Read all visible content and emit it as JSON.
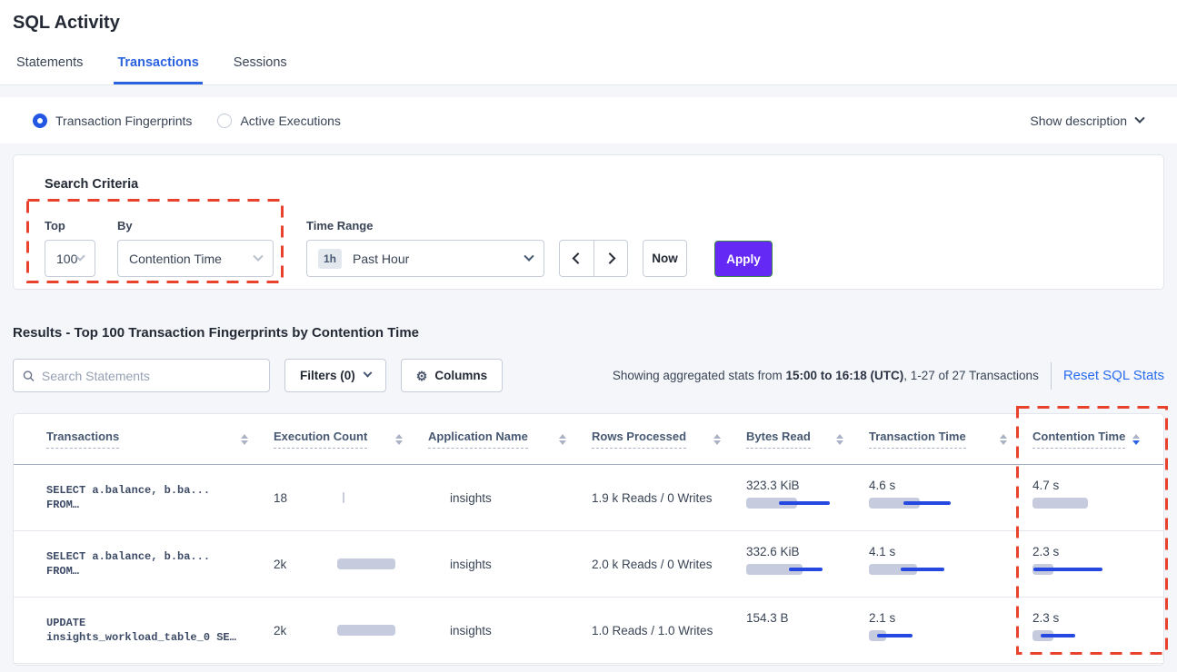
{
  "page": {
    "title": "SQL Activity"
  },
  "tabs": [
    {
      "label": "Statements",
      "active": false
    },
    {
      "label": "Transactions",
      "active": true
    },
    {
      "label": "Sessions",
      "active": false
    }
  ],
  "view_toggle": {
    "options": [
      {
        "label": "Transaction Fingerprints",
        "selected": true
      },
      {
        "label": "Active Executions",
        "selected": false
      }
    ],
    "show_description_label": "Show description"
  },
  "search_criteria": {
    "heading": "Search Criteria",
    "top": {
      "label": "Top",
      "value": "100"
    },
    "by": {
      "label": "By",
      "value": "Contention Time"
    },
    "time_range": {
      "label": "Time Range",
      "badge": "1h",
      "value": "Past Hour"
    },
    "now_label": "Now",
    "apply_label": "Apply"
  },
  "results": {
    "heading": "Results - Top 100 Transaction Fingerprints by Contention Time",
    "search_placeholder": "Search Statements",
    "filters_label": "Filters (0)",
    "columns_label": "Columns",
    "stats_prefix": "Showing aggregated stats from ",
    "stats_bold": "15:00 to 16:18 (UTC)",
    "stats_suffix": ", 1-27 of 27 Transactions",
    "reset_label": "Reset SQL Stats"
  },
  "table": {
    "columns": [
      {
        "label": "Transactions",
        "sort": "none"
      },
      {
        "label": "Execution Count",
        "sort": "none"
      },
      {
        "label": "Application Name",
        "sort": "none"
      },
      {
        "label": "Rows Processed",
        "sort": "none"
      },
      {
        "label": "Bytes Read",
        "sort": "none"
      },
      {
        "label": "Transaction Time",
        "sort": "none"
      },
      {
        "label": "Contention Time",
        "sort": "desc"
      }
    ],
    "rows": [
      {
        "sql_line1": "SELECT a.balance, b.ba...",
        "sql_line2": "FROM…",
        "execution_count": "18",
        "execution_bar": {
          "bar": 2,
          "x": 6
        },
        "application_name": "insights",
        "rows_processed": "1.9 k Reads / 0 Writes",
        "bytes_read": "323.3 KiB",
        "bytes_bar": {
          "bar": 56,
          "line": [
            36,
            92
          ]
        },
        "transaction_time": "4.6 s",
        "transaction_bar": {
          "bar": 56,
          "line": [
            38,
            90
          ]
        },
        "contention_time": "4.7 s",
        "contention_bar": {
          "bar": 61
        }
      },
      {
        "sql_line1": "SELECT a.balance, b.ba...",
        "sql_line2": "FROM…",
        "execution_count": "2k",
        "execution_bar": {
          "bar": 64
        },
        "application_name": "insights",
        "rows_processed": "2.0 k Reads / 0 Writes",
        "bytes_read": "332.6 KiB",
        "bytes_bar": {
          "bar": 62,
          "line": [
            47,
            84
          ]
        },
        "transaction_time": "4.1 s",
        "transaction_bar": {
          "bar": 53,
          "line": [
            35,
            83
          ]
        },
        "contention_time": "2.3 s",
        "contention_bar": {
          "bar": 23,
          "line": [
            1,
            77
          ]
        }
      },
      {
        "sql_line1": "UPDATE",
        "sql_line2": "insights_workload_table_0 SE…",
        "execution_count": "2k",
        "execution_bar": {
          "bar": 64
        },
        "application_name": "insights",
        "rows_processed": "1.0 Reads / 1.0 Writes",
        "bytes_read": "154.3 B",
        "transaction_time": "2.1 s",
        "transaction_bar": {
          "bar": 19,
          "line": [
            9,
            48
          ]
        },
        "contention_time": "2.3 s",
        "contention_bar": {
          "bar": 23,
          "line": [
            9,
            47
          ]
        }
      }
    ]
  },
  "colors": {
    "accent_blue": "#2a62e0",
    "link_blue": "#2a6cf0",
    "apply_purple": "#6429f5",
    "highlight_red": "#e8422c",
    "bar_gray": "#c6ccde",
    "bar_line_blue": "#2448e0"
  },
  "icons": {
    "search": "magnifier",
    "gear": "gear",
    "chevron_down": "chevron-down",
    "arrow_left": "angle-left",
    "arrow_right": "angle-right",
    "sort": "sort-arrows"
  }
}
